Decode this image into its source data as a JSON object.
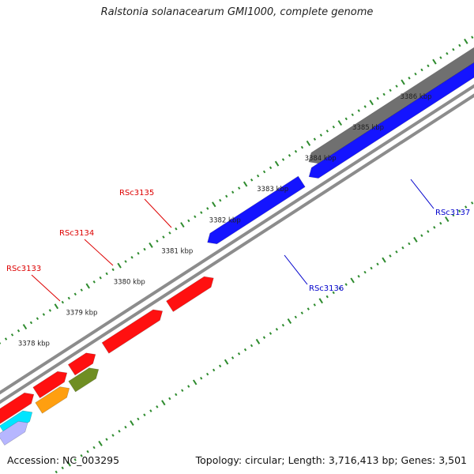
{
  "title": "Ralstonia solanacearum GMI1000, complete genome",
  "accession_label": "Accession: NC_003295",
  "summary_label": "Topology: circular; Length: 3,716,413 bp; Genes: 3,501",
  "colors": {
    "background": "#ffffff",
    "backbone": "#8c8c8c",
    "tick": "#2e8b2e",
    "forward_gene": "#ff1010",
    "reverse_gene": "#1414ff",
    "pseudo_gene": "#707070",
    "orange_gene": "#ff9f10",
    "olive_gene": "#6f8e23",
    "cyan_gene": "#00e5ff",
    "lavender_gene": "#b6b6ff",
    "label_forward": "#dd0000",
    "label_reverse": "#0000cc"
  },
  "scale_marks": [
    "3378 kbp",
    "3379 kbp",
    "3380 kbp",
    "3381 kbp",
    "3382 kbp",
    "3383 kbp",
    "3384 kbp",
    "3385 kbp",
    "3386 kbp"
  ],
  "gene_labels": [
    {
      "id": "RSc3133",
      "text": "RSc3133",
      "strand": "forward"
    },
    {
      "id": "RSc3134",
      "text": "RSc3134",
      "strand": "forward"
    },
    {
      "id": "RSc3135",
      "text": "RSc3135",
      "strand": "forward"
    },
    {
      "id": "RSc3136",
      "text": "RSc3136",
      "strand": "reverse"
    },
    {
      "id": "RSc3137",
      "text": "RSc3137",
      "strand": "reverse"
    }
  ]
}
